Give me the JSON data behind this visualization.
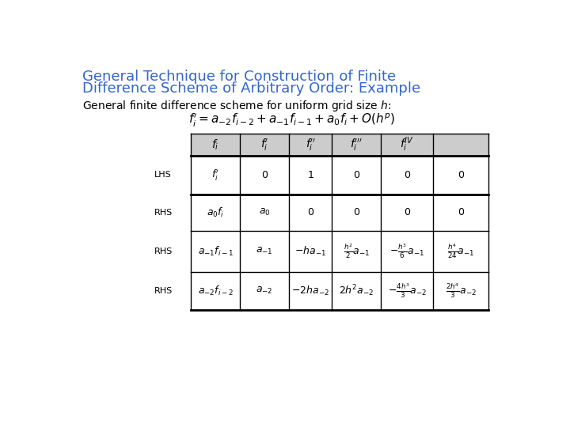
{
  "title_line1": "General Technique for Construction of Finite",
  "title_line2": "Difference Scheme of Arbitrary Order: Example",
  "title_color": "#3366CC",
  "bg_color": "#FFFFFF",
  "subtitle": "General finite difference scheme for uniform grid size $h$:",
  "formula": "$f_i^{\\prime} = a_{-2}f_{i-2} + a_{-1}f_{i-1} + a_0f_i + O(h^p)$",
  "col_headers": [
    "$f_i$",
    "$f_i^{\\prime}$",
    "$f_i^{\\prime\\prime}$",
    "$f_i^{\\prime\\prime\\prime}$",
    "$f_i^{IV}$"
  ],
  "row_labels_side": [
    "LHS",
    "RHS",
    "RHS",
    "RHS"
  ],
  "row_labels_expr": [
    "$f_i^{\\prime}$",
    "$a_0 f_i$",
    "$a_{-1}f_{i-1}$",
    "$a_{-2}f_{i-2}$"
  ],
  "table_data": [
    [
      "$0$",
      "$1$",
      "$0$",
      "$0$",
      "$0$"
    ],
    [
      "$a_0$",
      "$0$",
      "$0$",
      "$0$",
      "$0$"
    ],
    [
      "$a_{-1}$",
      "$-ha_{-1}$",
      "$\\frac{h^2}{2}a_{-1}$",
      "$-\\frac{h^3}{6}a_{-1}$",
      "$\\frac{h^4}{24}a_{-1}$"
    ],
    [
      "$a_{-2}$",
      "$-2ha_{-2}$",
      "$2h^2a_{-2}$",
      "$-\\frac{4h^3}{3}a_{-2}$",
      "$\\frac{2h^4}{3}a_{-2}$"
    ]
  ],
  "header_bg": "#CCCCCC",
  "fontsize_title": 13,
  "fontsize_subtitle": 10,
  "fontsize_formula": 11,
  "fontsize_header": 10,
  "fontsize_side": 8,
  "fontsize_expr": 9,
  "fontsize_cell": 9
}
